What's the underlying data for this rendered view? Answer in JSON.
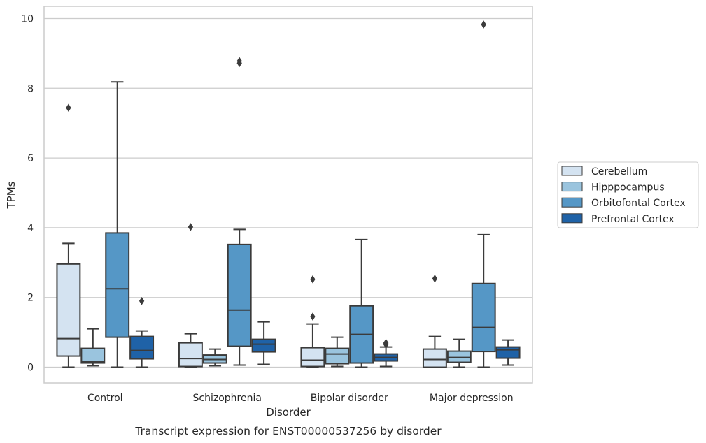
{
  "chart_data": {
    "type": "box",
    "title": "Transcript expression for ENST00000537256 by disorder",
    "xlabel": "Disorder",
    "ylabel": "TPMs",
    "ylim": [
      -0.45,
      10.35
    ],
    "yticks": [
      0,
      2,
      4,
      6,
      8,
      10
    ],
    "categories": [
      "Control",
      "Schizophrenia",
      "Bipolar disorder",
      "Major depression"
    ],
    "grid": true,
    "legend_position": "right",
    "series": [
      {
        "name": "Cerebellum",
        "color": "#d4e3f1",
        "boxes": [
          {
            "whislo": 0.0,
            "q1": 0.32,
            "med": 0.82,
            "q3": 2.96,
            "whishi": 3.55,
            "fliers": [
              7.44
            ]
          },
          {
            "whislo": 0.0,
            "q1": 0.02,
            "med": 0.25,
            "q3": 0.7,
            "whishi": 0.96,
            "fliers": [
              4.02
            ]
          },
          {
            "whislo": 0.0,
            "q1": 0.02,
            "med": 0.2,
            "q3": 0.56,
            "whishi": 1.24,
            "fliers": [
              2.52,
              1.45
            ]
          },
          {
            "whislo": 0.0,
            "q1": 0.0,
            "med": 0.22,
            "q3": 0.52,
            "whishi": 0.88,
            "fliers": [
              2.54
            ]
          }
        ]
      },
      {
        "name": "Hipppocampus",
        "color": "#9ac4de",
        "boxes": [
          {
            "whislo": 0.04,
            "q1": 0.12,
            "med": 0.15,
            "q3": 0.54,
            "whishi": 1.1,
            "fliers": []
          },
          {
            "whislo": 0.04,
            "q1": 0.12,
            "med": 0.22,
            "q3": 0.35,
            "whishi": 0.52,
            "fliers": []
          },
          {
            "whislo": 0.02,
            "q1": 0.1,
            "med": 0.38,
            "q3": 0.54,
            "whishi": 0.86,
            "fliers": []
          },
          {
            "whislo": 0.0,
            "q1": 0.14,
            "med": 0.28,
            "q3": 0.46,
            "whishi": 0.8,
            "fliers": []
          }
        ]
      },
      {
        "name": "Orbitofontal Cortex",
        "color": "#5597c6",
        "boxes": [
          {
            "whislo": 0.0,
            "q1": 0.86,
            "med": 2.25,
            "q3": 3.85,
            "whishi": 8.18,
            "fliers": []
          },
          {
            "whislo": 0.06,
            "q1": 0.6,
            "med": 1.64,
            "q3": 3.52,
            "whishi": 3.95,
            "fliers": [
              8.72,
              8.78
            ]
          },
          {
            "whislo": 0.0,
            "q1": 0.12,
            "med": 0.94,
            "q3": 1.76,
            "whishi": 3.66,
            "fliers": []
          },
          {
            "whislo": 0.0,
            "q1": 0.45,
            "med": 1.14,
            "q3": 2.4,
            "whishi": 3.8,
            "fliers": [
              9.83
            ]
          }
        ]
      },
      {
        "name": "Prefrontal Cortex",
        "color": "#1f62a7",
        "boxes": [
          {
            "whislo": 0.0,
            "q1": 0.24,
            "med": 0.48,
            "q3": 0.88,
            "whishi": 1.04,
            "fliers": [
              1.9
            ]
          },
          {
            "whislo": 0.08,
            "q1": 0.44,
            "med": 0.66,
            "q3": 0.8,
            "whishi": 1.3,
            "fliers": []
          },
          {
            "whislo": 0.02,
            "q1": 0.18,
            "med": 0.28,
            "q3": 0.38,
            "whishi": 0.58,
            "fliers": [
              0.65,
              0.68,
              0.7
            ]
          },
          {
            "whislo": 0.06,
            "q1": 0.26,
            "med": 0.5,
            "q3": 0.58,
            "whishi": 0.78,
            "fliers": []
          }
        ]
      }
    ]
  },
  "colors": {
    "grid": "#cccccc",
    "frame": "#cccccc",
    "stroke": "#3b3b3b",
    "text": "#262626"
  }
}
